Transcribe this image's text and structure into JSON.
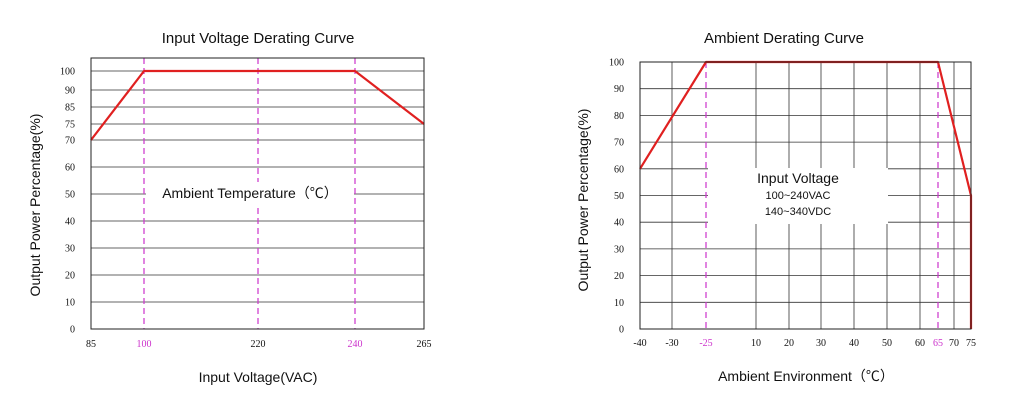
{
  "chart_data": [
    {
      "type": "line",
      "title": "Input Voltage Derating Curve",
      "xlabel": "Input Voltage(VAC)",
      "ylabel": "Output Power Percentage(%)",
      "x_ticks": [
        85,
        100,
        220,
        240,
        265
      ],
      "x_tick_labels": [
        "85",
        "100",
        "220",
        "240",
        "265"
      ],
      "x_highlight_ticks": [
        100,
        240
      ],
      "y_ticks": [
        0,
        10,
        20,
        30,
        40,
        50,
        60,
        70,
        75,
        85,
        90,
        100
      ],
      "y_tick_labels": [
        "0",
        "10",
        "20",
        "30",
        "40",
        "50",
        "60",
        "70",
        "75",
        "85",
        "90",
        "100"
      ],
      "series": [
        {
          "x": [
            85,
            100,
            240,
            265
          ],
          "y": [
            70,
            100,
            100,
            75
          ],
          "color": "#e02020"
        }
      ],
      "dashed_verticals": [
        100,
        220,
        240
      ],
      "dashed_color": "#cc33cc",
      "annotation": "Ambient Temperature（℃）",
      "grid": true
    },
    {
      "type": "line",
      "title": "Ambient Derating Curve",
      "xlabel": "Ambient Environment（℃）",
      "ylabel": "Output Power Percentage(%)",
      "x_ticks": [
        -40,
        -30,
        -25,
        10,
        20,
        30,
        40,
        50,
        60,
        65,
        70,
        75
      ],
      "x_tick_labels": [
        "-40",
        "-30",
        "-25",
        "10",
        "20",
        "30",
        "40",
        "50",
        "60",
        "65",
        "70",
        "75"
      ],
      "x_highlight_ticks": [
        -25,
        65
      ],
      "y_ticks": [
        0,
        10,
        20,
        30,
        40,
        50,
        60,
        70,
        80,
        90,
        100
      ],
      "y_tick_labels": [
        "0",
        "10",
        "20",
        "30",
        "40",
        "50",
        "60",
        "70",
        "80",
        "90",
        "100"
      ],
      "series": [
        {
          "x": [
            -40,
            -25,
            65,
            75,
            75
          ],
          "y": [
            60,
            100,
            100,
            50,
            0
          ],
          "color": "#e02020"
        }
      ],
      "dashed_verticals": [
        -25,
        65
      ],
      "dashed_color": "#cc33cc",
      "annotation_title": "Input Voltage",
      "annotation_lines": [
        "100~240VAC",
        "140~340VDC"
      ],
      "grid": true
    }
  ]
}
